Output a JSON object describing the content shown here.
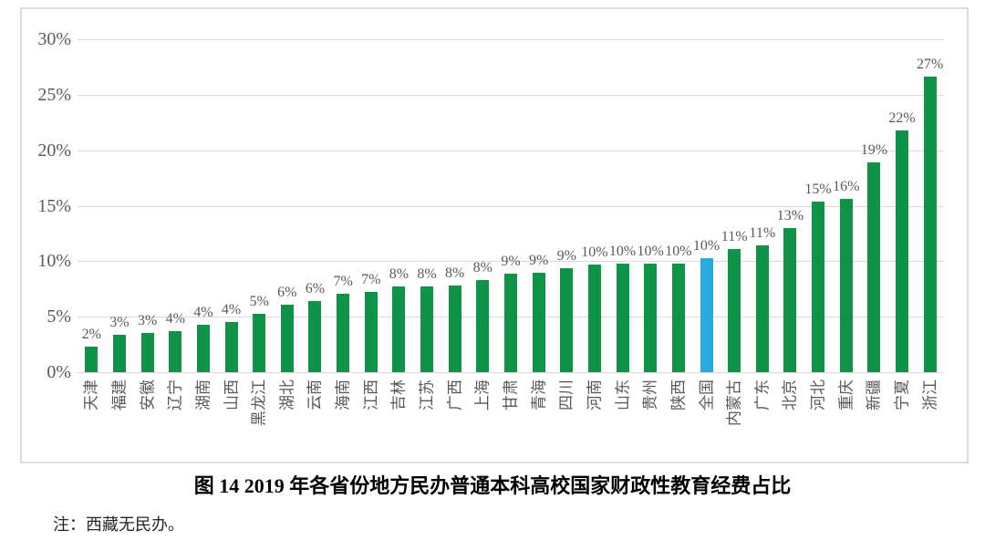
{
  "chart_data": {
    "type": "bar",
    "title": "图 14  2019 年各省份地方民办普通本科高校国家财政性教育经费占比",
    "note": "注：西藏无民办。",
    "categories": [
      "天津",
      "福建",
      "安徽",
      "辽宁",
      "湖南",
      "山西",
      "黑龙江",
      "湖北",
      "云南",
      "海南",
      "江西",
      "吉林",
      "江苏",
      "广西",
      "上海",
      "甘肃",
      "青海",
      "四川",
      "河南",
      "山东",
      "贵州",
      "陕西",
      "全国",
      "内蒙古",
      "广东",
      "北京",
      "河北",
      "重庆",
      "新疆",
      "宁夏",
      "浙江"
    ],
    "values": [
      2.3,
      3.4,
      3.5,
      3.7,
      4.3,
      4.5,
      5.3,
      6.1,
      6.4,
      7.1,
      7.2,
      7.7,
      7.7,
      7.8,
      8.3,
      8.9,
      9.0,
      9.4,
      9.7,
      9.8,
      9.8,
      9.8,
      10.3,
      11.1,
      11.4,
      13.0,
      15.4,
      15.6,
      18.9,
      21.8,
      26.6
    ],
    "labels": [
      "2%",
      "3%",
      "3%",
      "4%",
      "4%",
      "4%",
      "5%",
      "6%",
      "6%",
      "7%",
      "7%",
      "8%",
      "8%",
      "8%",
      "8%",
      "9%",
      "9%",
      "9%",
      "10%",
      "10%",
      "10%",
      "10%",
      "10%",
      "11%",
      "11%",
      "13%",
      "15%",
      "16%",
      "19%",
      "22%",
      "27%"
    ],
    "highlight_category": "全国",
    "yticks": [
      {
        "value": 0,
        "label": "0%"
      },
      {
        "value": 5,
        "label": "5%"
      },
      {
        "value": 10,
        "label": "10%"
      },
      {
        "value": 15,
        "label": "15%"
      },
      {
        "value": 20,
        "label": "20%"
      },
      {
        "value": 25,
        "label": "25%"
      },
      {
        "value": 30,
        "label": "30%"
      }
    ],
    "ylim": [
      0,
      30
    ],
    "grid": true,
    "legend": false,
    "colors": {
      "bar": "#0E9347",
      "highlight": "#29ABE2",
      "axis_text": "#595959",
      "gridline": "#d9d9d9",
      "frame_border": "#dcdcdc",
      "title_text": "#000000"
    }
  }
}
